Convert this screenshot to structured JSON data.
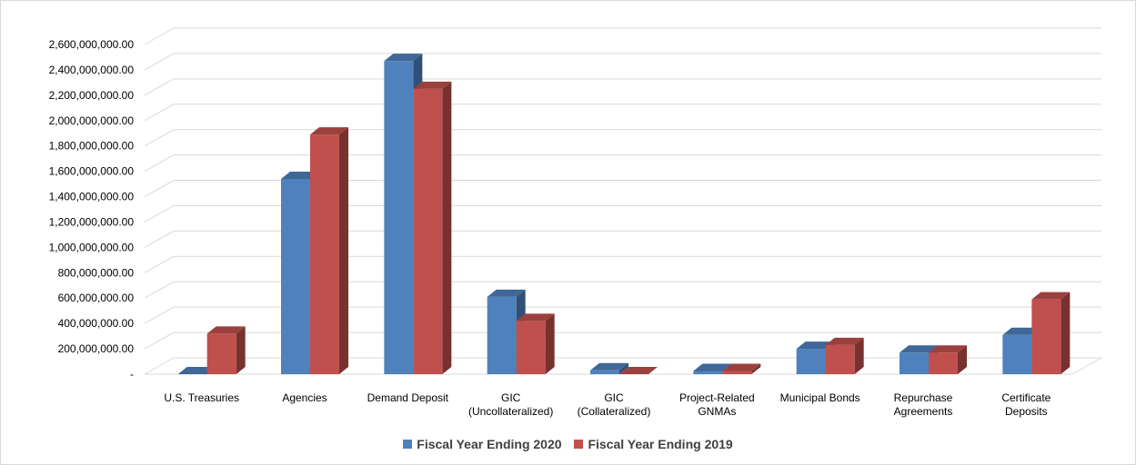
{
  "chart_data": {
    "type": "bar",
    "style": "3d-clustered-column",
    "title": "",
    "xlabel": "",
    "ylabel": "",
    "ylim": [
      0,
      2600000000
    ],
    "ytick_step": 200000000,
    "ytick_labels": [
      "-",
      "200,000,000.00",
      "400,000,000.00",
      "600,000,000.00",
      "800,000,000.00",
      "1,000,000,000.00",
      "1,200,000,000.00",
      "1,400,000,000.00",
      "1,600,000,000.00",
      "1,800,000,000.00",
      "2,000,000,000.00",
      "2,200,000,000.00",
      "2,400,000,000.00",
      "2,600,000,000.00"
    ],
    "categories": [
      [
        "U.S. Treasuries"
      ],
      [
        "Agencies"
      ],
      [
        "Demand Deposit"
      ],
      [
        "GIC",
        "(Uncollateralized)"
      ],
      [
        "GIC",
        "(Collateralized)"
      ],
      [
        "Project-Related",
        "GNMAs"
      ],
      [
        "Municipal Bonds"
      ],
      [
        "Repurchase",
        "Agreements"
      ],
      [
        "Certificate",
        "Deposits"
      ]
    ],
    "series": [
      {
        "name": "Fiscal Year Ending 2020",
        "color": "#4f81bd",
        "values": [
          0,
          1540000000,
          2470000000,
          610000000,
          30000000,
          25000000,
          200000000,
          170000000,
          310000000
        ]
      },
      {
        "name": "Fiscal Year Ending 2019",
        "color": "#c0504d",
        "values": [
          320000000,
          1890000000,
          2250000000,
          420000000,
          0,
          25000000,
          230000000,
          170000000,
          590000000
        ]
      }
    ],
    "grid": true,
    "legend_position": "bottom"
  }
}
